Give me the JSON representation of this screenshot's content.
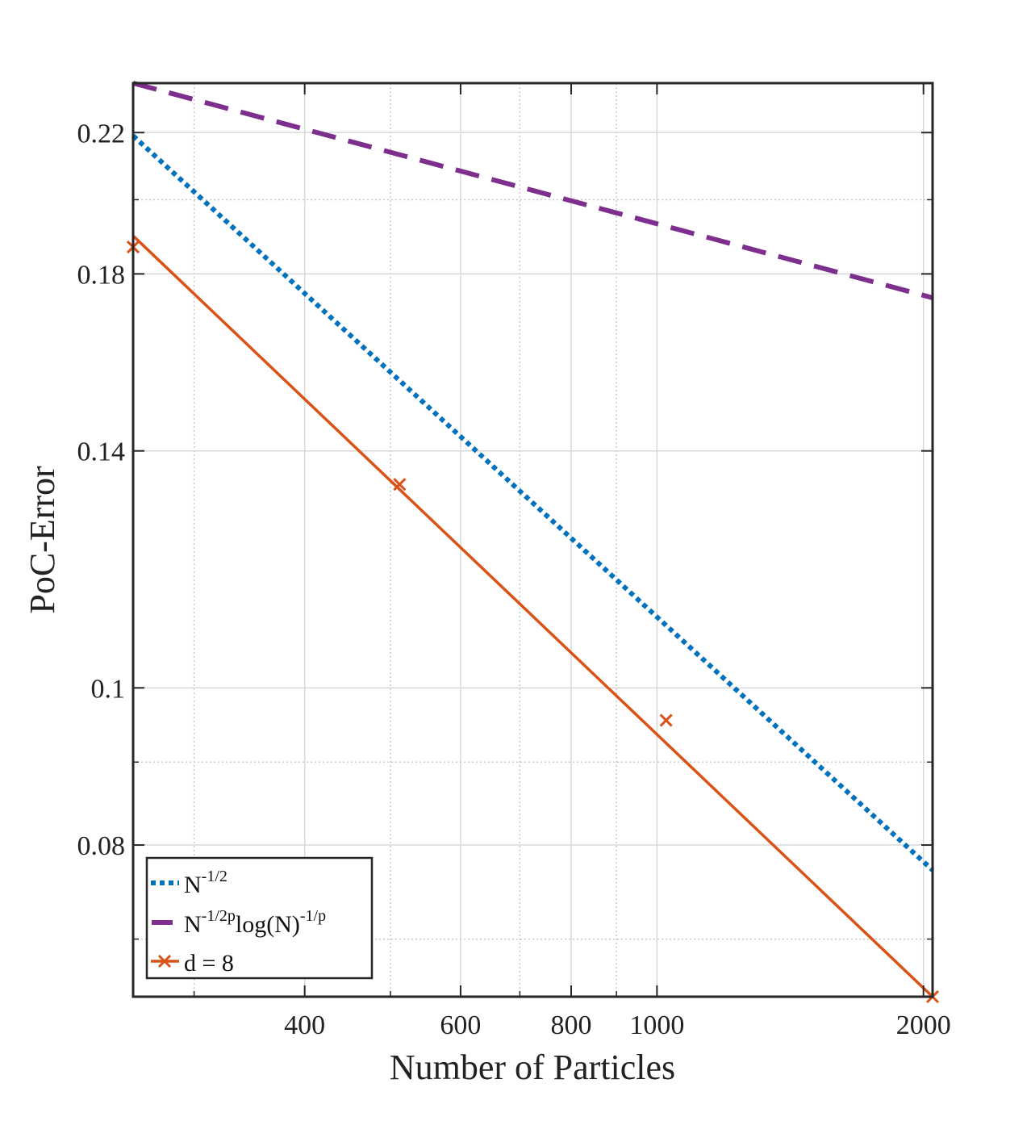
{
  "chart_data": {
    "type": "line",
    "xlabel": "Number of Particles",
    "ylabel": "PoC-Error",
    "xscale": "log",
    "yscale": "log",
    "xlim": [
      256,
      2048
    ],
    "ylim": [
      0.0645,
      0.236
    ],
    "x_ticks": [
      {
        "value": 400,
        "label": "400"
      },
      {
        "value": 600,
        "label": "600"
      },
      {
        "value": 800,
        "label": "800"
      },
      {
        "value": 1000,
        "label": "1000"
      },
      {
        "value": 2000,
        "label": "2000"
      }
    ],
    "x_minor_ticks": [
      300,
      500,
      700,
      900
    ],
    "y_ticks": [
      {
        "value": 0.08,
        "label": "0.08"
      },
      {
        "value": 0.1,
        "label": "0.1"
      },
      {
        "value": 0.14,
        "label": "0.14"
      },
      {
        "value": 0.18,
        "label": "0.18"
      },
      {
        "value": 0.22,
        "label": "0.22"
      }
    ],
    "y_minor_ticks": [
      0.07,
      0.09,
      0.2
    ],
    "grid": true,
    "legend_position": "bottom-left",
    "series": [
      {
        "name": "N^-1/2",
        "legend_main": "N",
        "legend_sup": "-1/2",
        "style": "dotted",
        "color": "#0072BD",
        "x": [
          256,
          2048
        ],
        "y": [
          0.219,
          0.0772
        ]
      },
      {
        "name": "N^-1/2p log(N)^-1/p",
        "legend_main": "N",
        "legend_sup": "-1/2p",
        "legend_main2": "log(N)",
        "legend_sup2": "-1/p",
        "style": "dashed",
        "color": "#7E2F8E",
        "x": [
          256,
          2048
        ],
        "y": [
          0.236,
          0.174
        ]
      },
      {
        "name": "d = 8",
        "legend_main": "d = 8",
        "style": "solid",
        "marker": "x",
        "color": "#D95319",
        "x": [
          256,
          512,
          1024,
          2048
        ],
        "y": [
          0.187,
          0.1335,
          0.0955,
          0.0645
        ],
        "fit_start": [
          256,
          0.19
        ]
      }
    ]
  }
}
